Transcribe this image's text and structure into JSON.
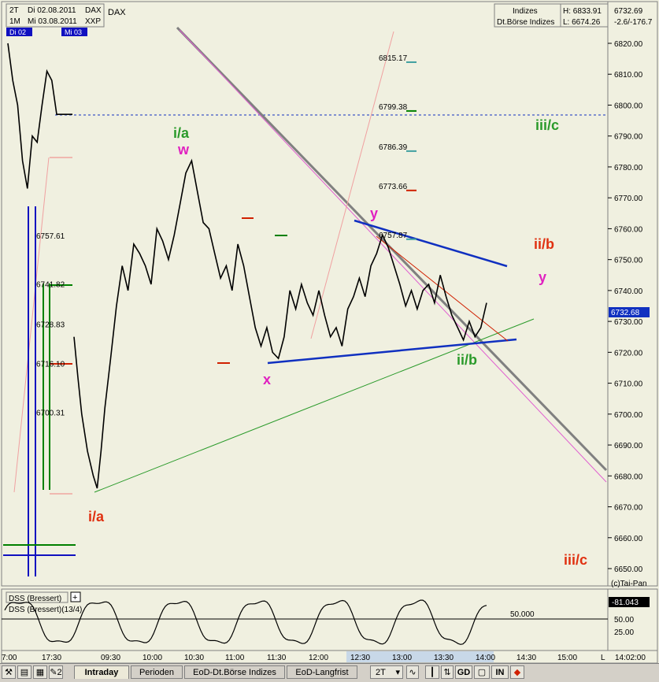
{
  "header": {
    "period_a": "2T",
    "date_a": "Di 02.08.2011",
    "sym_a": "DAX",
    "sym_top": "DAX",
    "period_b": "1M",
    "date_b": "Mi 03.08.2011",
    "sym_b": "XXP",
    "day_marker_a": "Di 02",
    "day_marker_b": "Mi 03",
    "category": "Indizes",
    "exchange": "Dt.Börse Indizes",
    "high": "H: 6833.91",
    "low": "L: 6674.26",
    "last": "6732.69",
    "change": "-2.6/-176.7"
  },
  "chart_data": {
    "type": "line",
    "title": "DAX",
    "ylim": [
      6644,
      6826
    ],
    "y_ticks": [
      "6820.00",
      "6810.00",
      "6800.00",
      "6790.00",
      "6780.00",
      "6770.00",
      "6760.00",
      "6750.00",
      "6740.00",
      "6730.00",
      "6720.00",
      "6710.00",
      "6700.00",
      "6690.00",
      "6680.00",
      "6670.00",
      "6660.00",
      "6650.00"
    ],
    "x_ticks": [
      "7:00",
      "17:30",
      "09:30",
      "10:00",
      "10:30",
      "11:00",
      "11:30",
      "12:00",
      "12:30",
      "13:00",
      "13:30",
      "14:00",
      "14:30",
      "15:00"
    ],
    "last_price_label": "6732.68",
    "copyright": "(c)Tai-Pan",
    "price_path": [
      [
        7.0,
        6820
      ],
      [
        7.3,
        6808
      ],
      [
        7.6,
        6800
      ],
      [
        7.9,
        6782
      ],
      [
        8.2,
        6773
      ],
      [
        8.5,
        6790
      ],
      [
        8.8,
        6788
      ],
      [
        9.1,
        6800
      ],
      [
        9.4,
        6811
      ],
      [
        9.7,
        6808
      ],
      [
        10.0,
        6797
      ],
      [
        17.6,
        6725
      ],
      [
        17.8,
        6712
      ],
      [
        18.0,
        6700
      ],
      [
        18.3,
        6688
      ],
      [
        18.6,
        6680
      ],
      [
        18.8,
        6676
      ],
      [
        19.0,
        6688
      ],
      [
        19.2,
        6702
      ],
      [
        19.5,
        6718
      ],
      [
        19.8,
        6735
      ],
      [
        20.1,
        6748
      ],
      [
        20.4,
        6740
      ],
      [
        20.7,
        6755
      ],
      [
        21.0,
        6752
      ],
      [
        21.3,
        6748
      ],
      [
        21.6,
        6742
      ],
      [
        21.9,
        6760
      ],
      [
        22.2,
        6756
      ],
      [
        22.5,
        6750
      ],
      [
        22.8,
        6758
      ],
      [
        23.1,
        6768
      ],
      [
        23.4,
        6778
      ],
      [
        23.7,
        6782
      ],
      [
        24.0,
        6772
      ],
      [
        24.3,
        6762
      ],
      [
        24.6,
        6760
      ],
      [
        24.9,
        6752
      ],
      [
        25.2,
        6744
      ],
      [
        25.5,
        6748
      ],
      [
        25.8,
        6740
      ],
      [
        26.1,
        6755
      ],
      [
        26.4,
        6748
      ],
      [
        26.7,
        6738
      ],
      [
        27.0,
        6728
      ],
      [
        27.3,
        6722
      ],
      [
        27.6,
        6728
      ],
      [
        27.9,
        6720
      ],
      [
        28.2,
        6718
      ],
      [
        28.5,
        6725
      ],
      [
        28.8,
        6740
      ],
      [
        29.1,
        6734
      ],
      [
        29.4,
        6742
      ],
      [
        29.7,
        6736
      ],
      [
        30.0,
        6732
      ],
      [
        30.3,
        6740
      ],
      [
        30.6,
        6732
      ],
      [
        30.9,
        6725
      ],
      [
        31.2,
        6728
      ],
      [
        31.5,
        6722
      ],
      [
        31.8,
        6734
      ],
      [
        32.1,
        6738
      ],
      [
        32.4,
        6744
      ],
      [
        32.7,
        6738
      ],
      [
        33.0,
        6748
      ],
      [
        33.3,
        6752
      ],
      [
        33.6,
        6758
      ],
      [
        33.9,
        6754
      ],
      [
        34.2,
        6748
      ],
      [
        34.5,
        6742
      ],
      [
        34.8,
        6735
      ],
      [
        35.1,
        6740
      ],
      [
        35.4,
        6734
      ],
      [
        35.7,
        6740
      ],
      [
        36.0,
        6742
      ],
      [
        36.3,
        6736
      ],
      [
        36.6,
        6745
      ],
      [
        36.9,
        6738
      ],
      [
        37.2,
        6732
      ],
      [
        37.5,
        6728
      ],
      [
        37.8,
        6724
      ],
      [
        38.1,
        6730
      ],
      [
        38.4,
        6725
      ],
      [
        38.7,
        6728
      ],
      [
        39.0,
        6736
      ]
    ],
    "intraday_x_start": "09:00",
    "intraday_x_end": "14:00",
    "fib_levels": [
      {
        "label": "6815.17",
        "value": 6815.17,
        "color": "#40a0a0"
      },
      {
        "label": "6799.38",
        "value": 6799.38,
        "color": "#008000"
      },
      {
        "label": "6786.39",
        "value": 6786.39,
        "color": "#40a0a0"
      },
      {
        "label": "6773.66",
        "value": 6773.66,
        "color": "#d02000"
      },
      {
        "label": "6757.87",
        "value": 6757.87,
        "color": "#40a0a0"
      }
    ],
    "left_levels": [
      {
        "label": "6757.61",
        "value": 6757.61
      },
      {
        "label": "6741.82",
        "value": 6741.82
      },
      {
        "label": "6728.83",
        "value": 6728.83
      },
      {
        "label": "6716.10",
        "value": 6716.1
      },
      {
        "label": "6700.31",
        "value": 6700.31
      }
    ],
    "wave_labels": [
      {
        "text": "i/a",
        "color": "#2a9a2a"
      },
      {
        "text": "w",
        "color": "#e020c0"
      },
      {
        "text": "y",
        "color": "#e020c0"
      },
      {
        "text": "x",
        "color": "#e020c0"
      },
      {
        "text": "i/a",
        "color": "#e03010"
      },
      {
        "text": "ii/b",
        "color": "#e03010"
      },
      {
        "text": "y",
        "color": "#e020c0"
      },
      {
        "text": "ii/b",
        "color": "#2a9a2a"
      },
      {
        "text": "iii/c",
        "color": "#2a9a2a"
      },
      {
        "text": "iii/c",
        "color": "#e03010"
      }
    ],
    "grid": false
  },
  "oscillator": {
    "name": "DSS (Bressert)",
    "name_params": "DSS (Bressert)(13/4)",
    "value": "-81.043",
    "level": "50.000",
    "y_ticks": [
      "50.00",
      "25.00"
    ],
    "last_time": "14:02:00"
  },
  "tabbar": {
    "tabs": [
      "Intraday",
      "Perioden",
      "EoD-Dt.Börse Indizes",
      "EoD-Langfrist"
    ],
    "period_select": "2T",
    "btn_gd": "GD",
    "btn_in": "IN",
    "page_label": "2"
  },
  "colors": {
    "background": "#f0f0e0",
    "price": "#000000",
    "trendline_blue": "#1030c0",
    "channel_gray": "#808080",
    "green_line": "#2a9a2a",
    "pink_line": "#e060d0",
    "red": "#d02000"
  }
}
